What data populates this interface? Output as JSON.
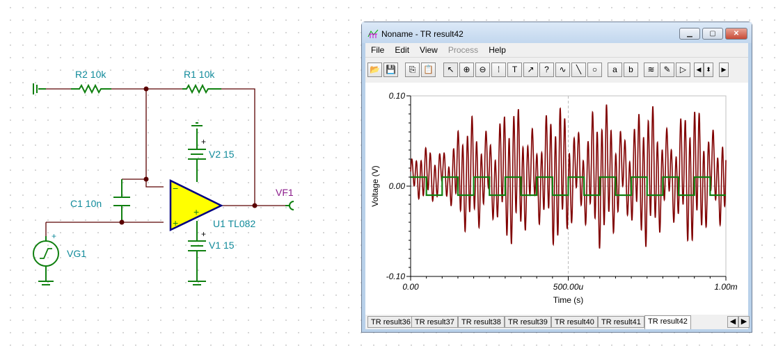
{
  "schematic": {
    "components": [
      {
        "ref": "R2",
        "value": "10k",
        "label": "R2 10k"
      },
      {
        "ref": "R1",
        "value": "10k",
        "label": "R1 10k"
      },
      {
        "ref": "V2",
        "value": "15",
        "label": "V2 15"
      },
      {
        "ref": "C1",
        "value": "10n",
        "label": "C1 10n"
      },
      {
        "ref": "U1",
        "value": "TL082",
        "label": "U1 TL082"
      },
      {
        "ref": "V1",
        "value": "15",
        "label": "V1 15"
      },
      {
        "ref": "VG1",
        "label": "VG1"
      },
      {
        "ref": "VF1",
        "label": "VF1"
      }
    ],
    "opamp_minus": "−",
    "opamp_plus": "+",
    "plus": "+",
    "colors": {
      "wire": "#5a0000",
      "component": "#108010",
      "label": "#108a9a",
      "probe_label": "#8a1a8a",
      "opamp_fill": "#ffff00",
      "opamp_stroke": "#000080"
    }
  },
  "window": {
    "title": "Noname - TR result42",
    "controls": {
      "minimize": "▁",
      "maximize": "▢",
      "close": "✕"
    },
    "menu": [
      {
        "label": "File",
        "enabled": true
      },
      {
        "label": "Edit",
        "enabled": true
      },
      {
        "label": "View",
        "enabled": true
      },
      {
        "label": "Process",
        "enabled": false
      },
      {
        "label": "Help",
        "enabled": true
      }
    ],
    "toolbar": [
      {
        "name": "open-icon",
        "glyph": "📂"
      },
      {
        "name": "save-icon",
        "glyph": "💾"
      },
      {
        "name": "copy-icon",
        "glyph": "⎘"
      },
      {
        "name": "paste-icon",
        "glyph": "📋"
      },
      {
        "name": "pointer-icon",
        "glyph": "↖",
        "active": true
      },
      {
        "name": "zoom-in-icon",
        "glyph": "⊕"
      },
      {
        "name": "zoom-100-icon",
        "glyph": "⊖"
      },
      {
        "name": "grid-icon",
        "glyph": "⁞"
      },
      {
        "name": "text-icon",
        "glyph": "T"
      },
      {
        "name": "annotate-icon",
        "glyph": "↗"
      },
      {
        "name": "annotate-query-icon",
        "glyph": "?"
      },
      {
        "name": "formula-icon",
        "glyph": "∿"
      },
      {
        "name": "line-icon",
        "glyph": "╲"
      },
      {
        "name": "circle-icon",
        "glyph": "○"
      },
      {
        "name": "cursor-a-icon",
        "glyph": "a"
      },
      {
        "name": "cursor-b-icon",
        "glyph": "b"
      },
      {
        "name": "add-curve-icon",
        "glyph": "≋"
      },
      {
        "name": "probe-icon",
        "glyph": "✎"
      },
      {
        "name": "marker-icon",
        "glyph": "▷"
      },
      {
        "name": "scroll-left-icon",
        "glyph": "◀"
      },
      {
        "name": "scroll-updown-icon",
        "glyph": "⬍"
      },
      {
        "name": "scroll-right-icon",
        "glyph": "▶"
      }
    ],
    "tabs": [
      "TR result36",
      "TR result37",
      "TR result38",
      "TR result39",
      "TR result40",
      "TR result41",
      "TR result42"
    ],
    "active_tab": "TR result42",
    "tab_scroll": {
      "left": "◀",
      "right": "▶"
    }
  },
  "chart_data": {
    "type": "line",
    "xlabel": "Time (s)",
    "ylabel": "Voltage (V)",
    "xlim": [
      0,
      0.001
    ],
    "ylim": [
      -0.1,
      0.1
    ],
    "xticks": [
      "0.00",
      "500.00u",
      "1.00m"
    ],
    "yticks": [
      "0.10",
      "0.00",
      "-0.10"
    ],
    "grid": "dashed center lines",
    "series": [
      {
        "color": "#800000",
        "description_type": "oscillation",
        "amplitude_max": 0.1
      },
      {
        "color": "#108010",
        "x": [
          0,
          5e-05,
          5e-05,
          0.0001,
          0.0001,
          0.00015,
          0.00015,
          0.0002,
          0.0002,
          0.00025,
          0.00025,
          0.0003,
          0.0003,
          0.00035,
          0.00035,
          0.0004,
          0.0004,
          0.00045,
          0.00045,
          0.0005,
          0.0005,
          0.00055,
          0.00055,
          0.0006,
          0.0006,
          0.00065,
          0.00065,
          0.0007,
          0.0007,
          0.00075,
          0.00075,
          0.0008,
          0.0008,
          0.00085,
          0.00085,
          0.0009,
          0.0009,
          0.00095,
          0.00095,
          0.001
        ],
        "y": [
          0.01,
          0.01,
          -0.01,
          -0.01,
          0.01,
          0.01,
          -0.01,
          -0.01,
          0.01,
          0.01,
          -0.01,
          -0.01,
          0.01,
          0.01,
          -0.01,
          -0.01,
          0.01,
          0.01,
          -0.01,
          -0.01,
          0.01,
          0.01,
          -0.01,
          -0.01,
          0.01,
          0.01,
          -0.01,
          -0.01,
          0.01,
          0.01,
          -0.01,
          -0.01,
          0.01,
          0.01,
          -0.01,
          -0.01,
          0.01,
          0.01,
          -0.01,
          -0.01
        ]
      }
    ]
  }
}
